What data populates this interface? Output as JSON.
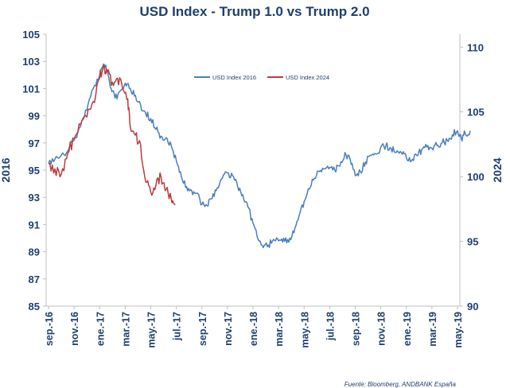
{
  "chart_data": {
    "type": "line",
    "title": "USD Index - Trump 1.0 vs Trump 2.0",
    "ylabel_left": "2016",
    "ylabel_right": "2024",
    "source": "Fuente: Bloomberg, ANDBANK España",
    "ylim_left": [
      85,
      105
    ],
    "ylim_right": [
      90,
      111
    ],
    "yticks_left": [
      85,
      87,
      89,
      91,
      93,
      95,
      97,
      99,
      101,
      103,
      105
    ],
    "yticks_right": [
      90,
      95,
      100,
      105,
      110
    ],
    "x_categories": [
      "sep.-16",
      "nov.-16",
      "ene.-17",
      "mar.-17",
      "may.-17",
      "jul.-17",
      "sep.-17",
      "nov.-17",
      "ene.-18",
      "mar.-18",
      "may.-18",
      "jul.-18",
      "sep.-18",
      "nov.-18",
      "ene.-19",
      "mar.-19",
      "may.-19"
    ],
    "legend_position": "top-center",
    "series": [
      {
        "name": "USD Index 2016",
        "axis": "left",
        "color": "#4a7ebf",
        "values": [
          [
            0,
            95.5
          ],
          [
            0.25,
            95.8
          ],
          [
            0.5,
            96.1
          ],
          [
            0.75,
            96.4
          ],
          [
            1,
            97.2
          ],
          [
            1.25,
            98.2
          ],
          [
            1.5,
            99.4
          ],
          [
            1.75,
            101.0
          ],
          [
            2,
            102.0
          ],
          [
            2.15,
            102.8
          ],
          [
            2.3,
            102.3
          ],
          [
            2.45,
            101.0
          ],
          [
            2.6,
            100.3
          ],
          [
            2.8,
            100.8
          ],
          [
            3,
            101.4
          ],
          [
            3.2,
            101.0
          ],
          [
            3.4,
            100.5
          ],
          [
            3.6,
            99.8
          ],
          [
            3.8,
            99.2
          ],
          [
            4,
            98.8
          ],
          [
            4.2,
            98.0
          ],
          [
            4.4,
            97.5
          ],
          [
            4.6,
            97.4
          ],
          [
            4.8,
            96.8
          ],
          [
            5,
            95.7
          ],
          [
            5.2,
            94.5
          ],
          [
            5.4,
            93.8
          ],
          [
            5.6,
            93.5
          ],
          [
            5.8,
            93.3
          ],
          [
            6,
            92.5
          ],
          [
            6.2,
            92.4
          ],
          [
            6.4,
            92.9
          ],
          [
            6.6,
            93.7
          ],
          [
            6.8,
            94.4
          ],
          [
            7,
            94.8
          ],
          [
            7.2,
            94.6
          ],
          [
            7.4,
            93.8
          ],
          [
            7.6,
            93.2
          ],
          [
            7.8,
            92.3
          ],
          [
            8,
            91.1
          ],
          [
            8.2,
            89.9
          ],
          [
            8.4,
            89.3
          ],
          [
            8.6,
            89.5
          ],
          [
            8.8,
            89.9
          ],
          [
            9,
            89.8
          ],
          [
            9.2,
            90.0
          ],
          [
            9.4,
            89.7
          ],
          [
            9.6,
            90.4
          ],
          [
            9.8,
            91.6
          ],
          [
            10,
            92.7
          ],
          [
            10.2,
            93.6
          ],
          [
            10.4,
            94.4
          ],
          [
            10.6,
            94.9
          ],
          [
            10.8,
            95.1
          ],
          [
            11,
            95.2
          ],
          [
            11.2,
            95.0
          ],
          [
            11.4,
            95.3
          ],
          [
            11.6,
            96.3
          ],
          [
            11.8,
            95.8
          ],
          [
            12,
            94.6
          ],
          [
            12.2,
            94.9
          ],
          [
            12.4,
            95.6
          ],
          [
            12.6,
            96.1
          ],
          [
            12.8,
            96.2
          ],
          [
            13,
            96.7
          ],
          [
            13.2,
            96.8
          ],
          [
            13.4,
            96.6
          ],
          [
            13.6,
            96.3
          ],
          [
            13.8,
            96.3
          ],
          [
            14,
            95.9
          ],
          [
            14.2,
            95.7
          ],
          [
            14.4,
            96.1
          ],
          [
            14.6,
            96.5
          ],
          [
            14.8,
            96.7
          ],
          [
            15,
            96.6
          ],
          [
            15.2,
            96.8
          ],
          [
            15.4,
            97.0
          ],
          [
            15.6,
            97.2
          ],
          [
            15.8,
            97.6
          ],
          [
            16,
            97.9
          ],
          [
            16.15,
            97.3
          ],
          [
            16.3,
            97.7
          ],
          [
            16.5,
            97.9
          ]
        ]
      },
      {
        "name": "USD Index 2024",
        "axis": "right",
        "color": "#c0393b",
        "values": [
          [
            0,
            101.0
          ],
          [
            0.25,
            100.6
          ],
          [
            0.5,
            100.2
          ],
          [
            0.75,
            101.8
          ],
          [
            1,
            102.9
          ],
          [
            1.25,
            104.0
          ],
          [
            1.5,
            104.6
          ],
          [
            1.75,
            105.8
          ],
          [
            2,
            107.6
          ],
          [
            2.15,
            108.6
          ],
          [
            2.3,
            108.1
          ],
          [
            2.5,
            107.3
          ],
          [
            2.7,
            107.6
          ],
          [
            2.9,
            106.8
          ],
          [
            3.1,
            106.0
          ],
          [
            3.2,
            103.8
          ],
          [
            3.4,
            103.2
          ],
          [
            3.6,
            102.5
          ],
          [
            3.8,
            99.6
          ],
          [
            4.0,
            98.8
          ],
          [
            4.2,
            99.3
          ],
          [
            4.4,
            100.0
          ],
          [
            4.6,
            99.0
          ],
          [
            4.8,
            98.3
          ],
          [
            4.95,
            97.8
          ]
        ]
      }
    ]
  }
}
